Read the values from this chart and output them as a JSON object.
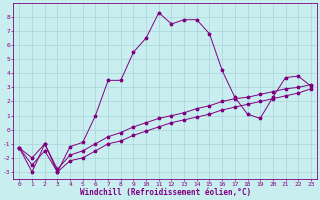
{
  "xlabel": "Windchill (Refroidissement éolien,°C)",
  "ylabel": "",
  "background_color": "#c8eef0",
  "grid_color": "#aad4d8",
  "line_color": "#800080",
  "xlim": [
    -0.5,
    23.5
  ],
  "ylim": [
    -3.5,
    9.0
  ],
  "xticks": [
    0,
    1,
    2,
    3,
    4,
    5,
    6,
    7,
    8,
    9,
    10,
    11,
    12,
    13,
    14,
    15,
    16,
    17,
    18,
    19,
    20,
    21,
    22,
    23
  ],
  "yticks": [
    -3,
    -2,
    -1,
    0,
    1,
    2,
    3,
    4,
    5,
    6,
    7,
    8
  ],
  "line1_x": [
    0,
    1,
    2,
    3,
    4,
    5,
    6,
    7,
    8,
    9,
    10,
    11,
    12,
    13,
    14,
    15,
    16,
    17,
    18,
    19,
    20,
    21,
    22,
    23
  ],
  "line1_y": [
    -1.3,
    -3.0,
    -1.0,
    -3.0,
    -1.2,
    -0.9,
    1.0,
    3.5,
    3.5,
    5.5,
    6.5,
    8.3,
    7.5,
    7.8,
    7.8,
    6.8,
    4.2,
    2.3,
    1.1,
    0.8,
    2.3,
    3.7,
    3.8,
    3.1
  ],
  "line2_x": [
    0,
    1,
    2,
    3,
    4,
    5,
    6,
    7,
    8,
    9,
    10,
    11,
    12,
    13,
    14,
    15,
    16,
    17,
    18,
    19,
    20,
    21,
    22,
    23
  ],
  "line2_y": [
    -1.3,
    -2.0,
    -1.0,
    -2.8,
    -1.8,
    -1.5,
    -1.0,
    -0.5,
    -0.2,
    0.2,
    0.5,
    0.8,
    1.0,
    1.2,
    1.5,
    1.7,
    2.0,
    2.2,
    2.3,
    2.5,
    2.7,
    2.9,
    3.0,
    3.2
  ],
  "line3_x": [
    0,
    1,
    2,
    3,
    4,
    5,
    6,
    7,
    8,
    9,
    10,
    11,
    12,
    13,
    14,
    15,
    16,
    17,
    18,
    19,
    20,
    21,
    22,
    23
  ],
  "line3_y": [
    -1.3,
    -2.5,
    -1.5,
    -3.0,
    -2.2,
    -2.0,
    -1.5,
    -1.0,
    -0.8,
    -0.4,
    -0.1,
    0.2,
    0.5,
    0.7,
    0.9,
    1.1,
    1.4,
    1.6,
    1.8,
    2.0,
    2.2,
    2.4,
    2.6,
    2.9
  ],
  "tick_fontsize": 4.5,
  "xlabel_fontsize": 5.5,
  "lw": 0.7,
  "ms": 2.5
}
